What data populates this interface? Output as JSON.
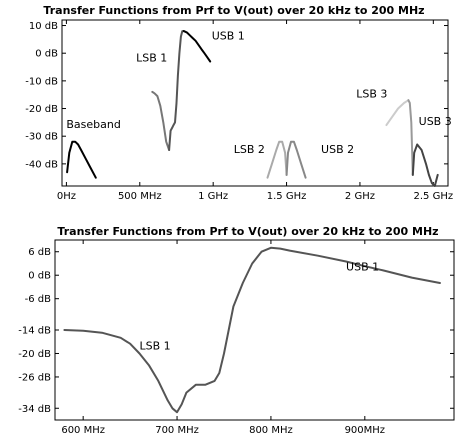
{
  "chart_data": [
    {
      "type": "line",
      "title": "Transfer Functions from Prf to V(out) over 20 kHz to 200 MHz",
      "xlabel": "",
      "ylabel": "",
      "xlim": [
        -30,
        2600
      ],
      "ylim": [
        -48,
        12
      ],
      "x_ticks": [
        {
          "value": 0,
          "label": "0Hz"
        },
        {
          "value": 500,
          "label": "500 MHz"
        },
        {
          "value": 1000,
          "label": "1 GHz"
        },
        {
          "value": 1500,
          "label": "1.5 GHz"
        },
        {
          "value": 2000,
          "label": "2 GHz"
        },
        {
          "value": 2500,
          "label": "2.5 GHz"
        }
      ],
      "y_ticks": [
        {
          "value": 10,
          "label": "10 dB"
        },
        {
          "value": 0,
          "label": "0 dB"
        },
        {
          "value": -10,
          "label": "-10 dB"
        },
        {
          "value": -20,
          "label": "-20 dB"
        },
        {
          "value": -30,
          "label": "-30 dB"
        },
        {
          "value": -40,
          "label": "-40 dB"
        }
      ],
      "annotations": [
        {
          "text": "Baseband",
          "x": 0,
          "y": -27
        },
        {
          "text": "LSB 1",
          "x": 475,
          "y": -3
        },
        {
          "text": "USB 1",
          "x": 990,
          "y": 5
        },
        {
          "text": "LSB 2",
          "x": 1140,
          "y": -36
        },
        {
          "text": "USB 2",
          "x": 1735,
          "y": -36
        },
        {
          "text": "LSB 3",
          "x": 1975,
          "y": -16
        },
        {
          "text": "USB 3",
          "x": 2400,
          "y": -26
        }
      ],
      "series": [
        {
          "color": "#000000",
          "x": [
            5,
            20,
            40,
            60,
            80,
            100,
            130,
            160,
            200
          ],
          "y": [
            -43,
            -36,
            -32,
            -32,
            -33,
            -35,
            -38,
            -41,
            -45
          ]
        },
        {
          "color": "#777777",
          "x": [
            585,
            600,
            620,
            640,
            660,
            680,
            700
          ],
          "y": [
            -14,
            -14.5,
            -15.5,
            -19,
            -25,
            -32,
            -35
          ]
        },
        {
          "color": "#555555",
          "x": [
            700,
            710,
            720,
            730,
            740,
            750,
            760,
            770,
            780,
            790,
            800
          ],
          "y": [
            -35,
            -28,
            -27,
            -26,
            -25,
            -18,
            -8,
            0,
            6,
            8,
            8
          ]
        },
        {
          "color": "#000000",
          "x": [
            800,
            820,
            840,
            860,
            880,
            900,
            920,
            940,
            960,
            980
          ],
          "y": [
            8,
            7.5,
            6.5,
            5.5,
            4.5,
            3,
            1.5,
            0,
            -1.5,
            -3
          ]
        },
        {
          "color": "#aaaaaa",
          "x": [
            1370,
            1400,
            1430,
            1450,
            1470,
            1490,
            1500
          ],
          "y": [
            -45,
            -40,
            -35,
            -32,
            -32,
            -36,
            -44
          ]
        },
        {
          "color": "#888888",
          "x": [
            1500,
            1510,
            1530,
            1550,
            1570,
            1600,
            1630
          ],
          "y": [
            -44,
            -36,
            -32,
            -32,
            -35,
            -40,
            -45
          ]
        },
        {
          "color": "#cccccc",
          "x": [
            2180,
            2220,
            2260,
            2300,
            2330
          ],
          "y": [
            -26,
            -23,
            -20,
            -18,
            -17
          ]
        },
        {
          "color": "#999999",
          "x": [
            2330,
            2340,
            2350,
            2360
          ],
          "y": [
            -17,
            -18,
            -25,
            -44
          ]
        },
        {
          "color": "#444444",
          "x": [
            2360,
            2370,
            2390,
            2420,
            2450,
            2470,
            2490,
            2510,
            2530
          ],
          "y": [
            -44,
            -36,
            -33,
            -35,
            -40,
            -44,
            -47,
            -48,
            -44
          ]
        }
      ]
    },
    {
      "type": "line",
      "title": "Transfer Functions from Prf to V(out) over 20 kHz to 200 MHz",
      "xlabel": "",
      "ylabel": "",
      "xlim": [
        570,
        995
      ],
      "ylim": [
        -37,
        9
      ],
      "x_ticks": [
        {
          "value": 600,
          "label": "600 MHz"
        },
        {
          "value": 700,
          "label": "700 MHz"
        },
        {
          "value": 800,
          "label": "800 MHz"
        },
        {
          "value": 900,
          "label": "900MHz"
        }
      ],
      "y_ticks": [
        {
          "value": 6,
          "label": "6 dB"
        },
        {
          "value": 0,
          "label": "0 dB"
        },
        {
          "value": -6,
          "label": "-6 dB"
        },
        {
          "value": -14,
          "label": "-14 dB"
        },
        {
          "value": -20,
          "label": "-20 dB"
        },
        {
          "value": -26,
          "label": "-26 dB"
        },
        {
          "value": -34,
          "label": "-34 dB"
        }
      ],
      "annotations": [
        {
          "text": "LSB 1",
          "x": 660,
          "y": -19
        },
        {
          "text": "USB 1",
          "x": 880,
          "y": 1.2
        }
      ],
      "series": [
        {
          "color": "#555555",
          "x": [
            580,
            600,
            620,
            640,
            650,
            660,
            670,
            680,
            690,
            695,
            700,
            705,
            710,
            720,
            730,
            740,
            745,
            750,
            755,
            760,
            770,
            780,
            790,
            800,
            810,
            820,
            850,
            880,
            900,
            920,
            950,
            980
          ],
          "y": [
            -14,
            -14.2,
            -14.7,
            -16,
            -17.5,
            -20,
            -23,
            -27,
            -32,
            -34,
            -35,
            -33,
            -30,
            -28,
            -28,
            -27,
            -25,
            -20,
            -14,
            -8,
            -2,
            3,
            6,
            7,
            6.8,
            6.3,
            5,
            3.5,
            2.3,
            1.2,
            -0.6,
            -2
          ]
        }
      ]
    }
  ]
}
